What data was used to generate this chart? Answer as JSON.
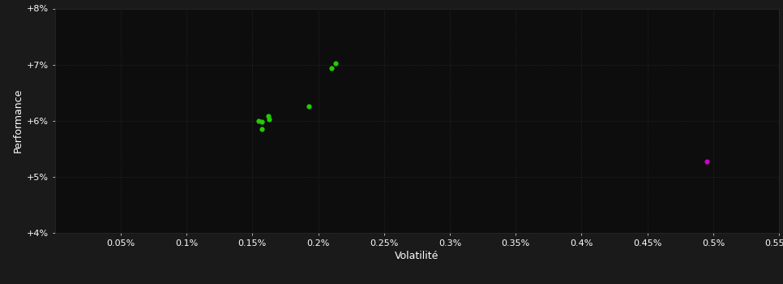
{
  "background_color": "#1a1a1a",
  "plot_bg_color": "#0d0d0d",
  "outer_bg_color": "#1a1a1a",
  "grid_color": "#2a2a2a",
  "text_color": "#ffffff",
  "xlabel": "Volatilité",
  "ylabel": "Performance",
  "xlim": [
    0.0,
    0.0055
  ],
  "ylim": [
    0.04,
    0.08
  ],
  "yticks": [
    0.04,
    0.05,
    0.06,
    0.07,
    0.08
  ],
  "xticks": [
    0.0005,
    0.001,
    0.0015,
    0.002,
    0.0025,
    0.003,
    0.0035,
    0.004,
    0.0045,
    0.005,
    0.0055
  ],
  "xtick_labels": [
    "0.05%",
    "0.1%",
    "0.15%",
    "0.2%",
    "0.25%",
    "0.3%",
    "0.35%",
    "0.4%",
    "0.45%",
    "0.5%",
    "0.55%"
  ],
  "ytick_labels": [
    "+4%",
    "+5%",
    "+6%",
    "+7%",
    "+8%"
  ],
  "green_points": [
    [
      0.00155,
      0.06
    ],
    [
      0.00162,
      0.0608
    ],
    [
      0.00157,
      0.0598
    ],
    [
      0.00163,
      0.0603
    ],
    [
      0.00157,
      0.0585
    ],
    [
      0.00193,
      0.0625
    ],
    [
      0.0021,
      0.0693
    ],
    [
      0.00213,
      0.0703
    ]
  ],
  "magenta_points": [
    [
      0.00495,
      0.0528
    ]
  ],
  "green_color": "#22cc00",
  "magenta_color": "#cc00cc",
  "marker_size": 20,
  "fontsize_ticks": 8,
  "fontsize_label": 9
}
